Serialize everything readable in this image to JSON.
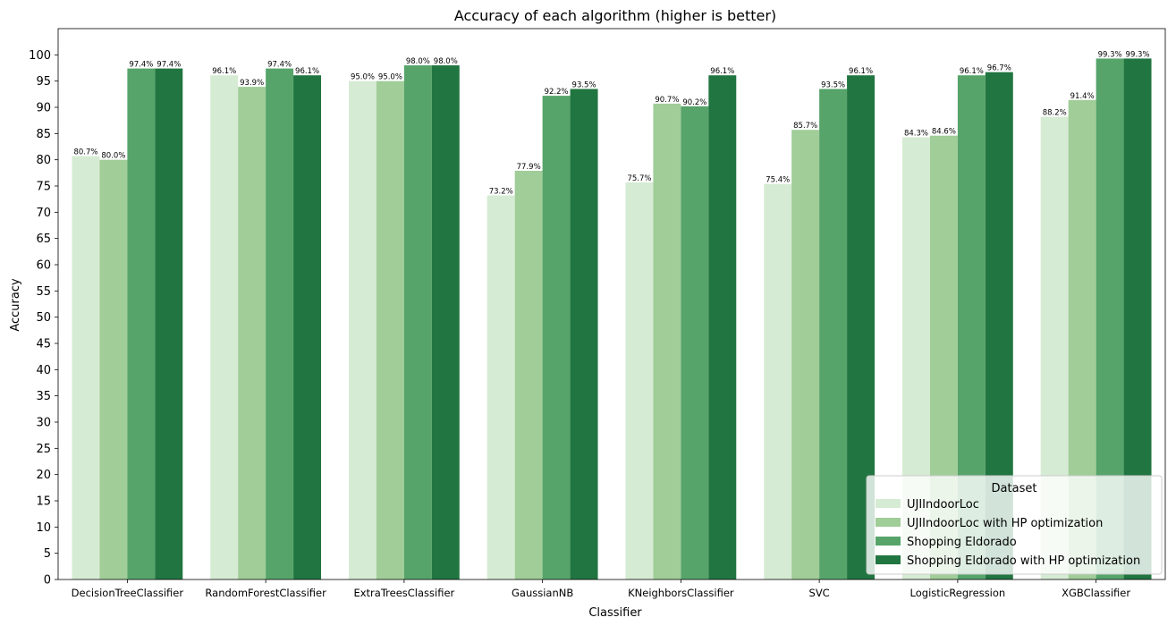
{
  "chart_data": {
    "type": "bar",
    "title": "Accuracy of each algorithm (higher is better)",
    "xlabel": "Classifier",
    "ylabel": "Accuracy",
    "ylim": [
      0,
      105
    ],
    "yticks": [
      0,
      5,
      10,
      15,
      20,
      25,
      30,
      35,
      40,
      45,
      50,
      55,
      60,
      65,
      70,
      75,
      80,
      85,
      90,
      95,
      100
    ],
    "grid": false,
    "categories": [
      "DecisionTreeClassifier",
      "RandomForestClassifier",
      "ExtraTreesClassifier",
      "GaussianNB",
      "KNeighborsClassifier",
      "SVC",
      "LogisticRegression",
      "XGBClassifier"
    ],
    "series": [
      {
        "name": "UJIIndoorLoc",
        "color": "#d6ebd3",
        "values": [
          80.7,
          96.1,
          95.0,
          73.2,
          75.7,
          75.4,
          84.3,
          88.2
        ]
      },
      {
        "name": "UJIIndoorLoc with HP optimization",
        "color": "#a0cd98",
        "values": [
          80.0,
          93.9,
          95.0,
          77.9,
          90.7,
          85.7,
          84.6,
          91.4
        ]
      },
      {
        "name": "Shopping Eldorado",
        "color": "#56a46a",
        "values": [
          97.4,
          97.4,
          98.0,
          92.2,
          90.2,
          93.5,
          96.1,
          99.3
        ]
      },
      {
        "name": "Shopping Eldorado with HP optimization",
        "color": "#217540",
        "values": [
          97.4,
          96.1,
          98.0,
          93.5,
          96.1,
          96.1,
          96.7,
          99.3
        ]
      }
    ],
    "data_labels": [
      [
        "80.7%",
        "96.1%",
        "95.0%",
        "73.2%",
        "75.7%",
        "75.4%",
        "84.3%",
        "88.2%"
      ],
      [
        "80.0%",
        "93.9%",
        "95.0%",
        "77.9%",
        "90.7%",
        "85.7%",
        "84.6%",
        "91.4%"
      ],
      [
        "97.4%",
        "97.4%",
        "98.0%",
        "92.2%",
        "90.2%",
        "93.5%",
        "96.1%",
        "99.3%"
      ],
      [
        "97.4%",
        "96.1%",
        "98.0%",
        "93.5%",
        "96.1%",
        "96.1%",
        "96.7%",
        "99.3%"
      ]
    ],
    "legend": {
      "title": "Dataset",
      "placement": "lower-right"
    }
  }
}
